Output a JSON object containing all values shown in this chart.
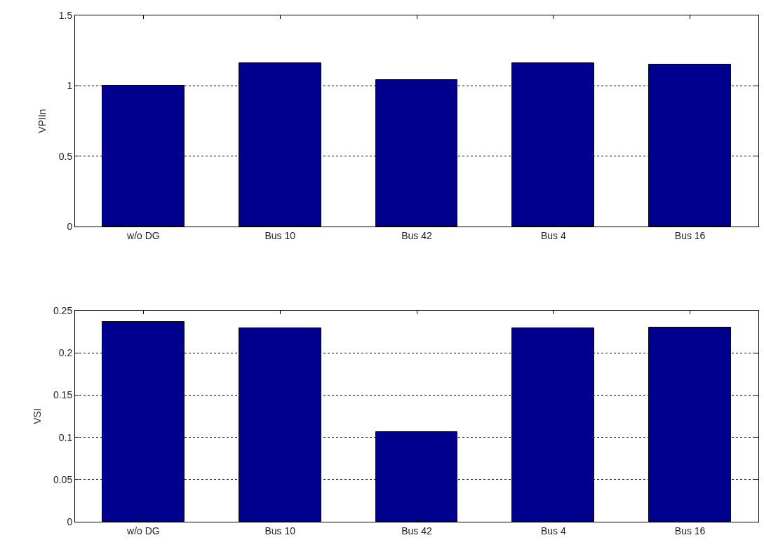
{
  "chart_data": [
    {
      "type": "bar",
      "ylabel": "VPIIn",
      "categories": [
        "w/o DG",
        "Bus 10",
        "Bus 42",
        "Bus 4",
        "Bus 16"
      ],
      "values": [
        1.0,
        1.16,
        1.04,
        1.16,
        1.15
      ],
      "color": "#00008f",
      "ylim": [
        0,
        1.5
      ],
      "yticks": [
        0,
        0.5,
        1,
        1.5
      ],
      "grid": "y"
    },
    {
      "type": "bar",
      "ylabel": "VSI",
      "categories": [
        "w/o DG",
        "Bus 10",
        "Bus 42",
        "Bus 4",
        "Bus 16"
      ],
      "values": [
        0.237,
        0.229,
        0.106,
        0.229,
        0.23
      ],
      "color": "#00008f",
      "ylim": [
        0,
        0.25
      ],
      "yticks": [
        0,
        0.05,
        0.1,
        0.15,
        0.2,
        0.25
      ],
      "grid": "y"
    }
  ]
}
